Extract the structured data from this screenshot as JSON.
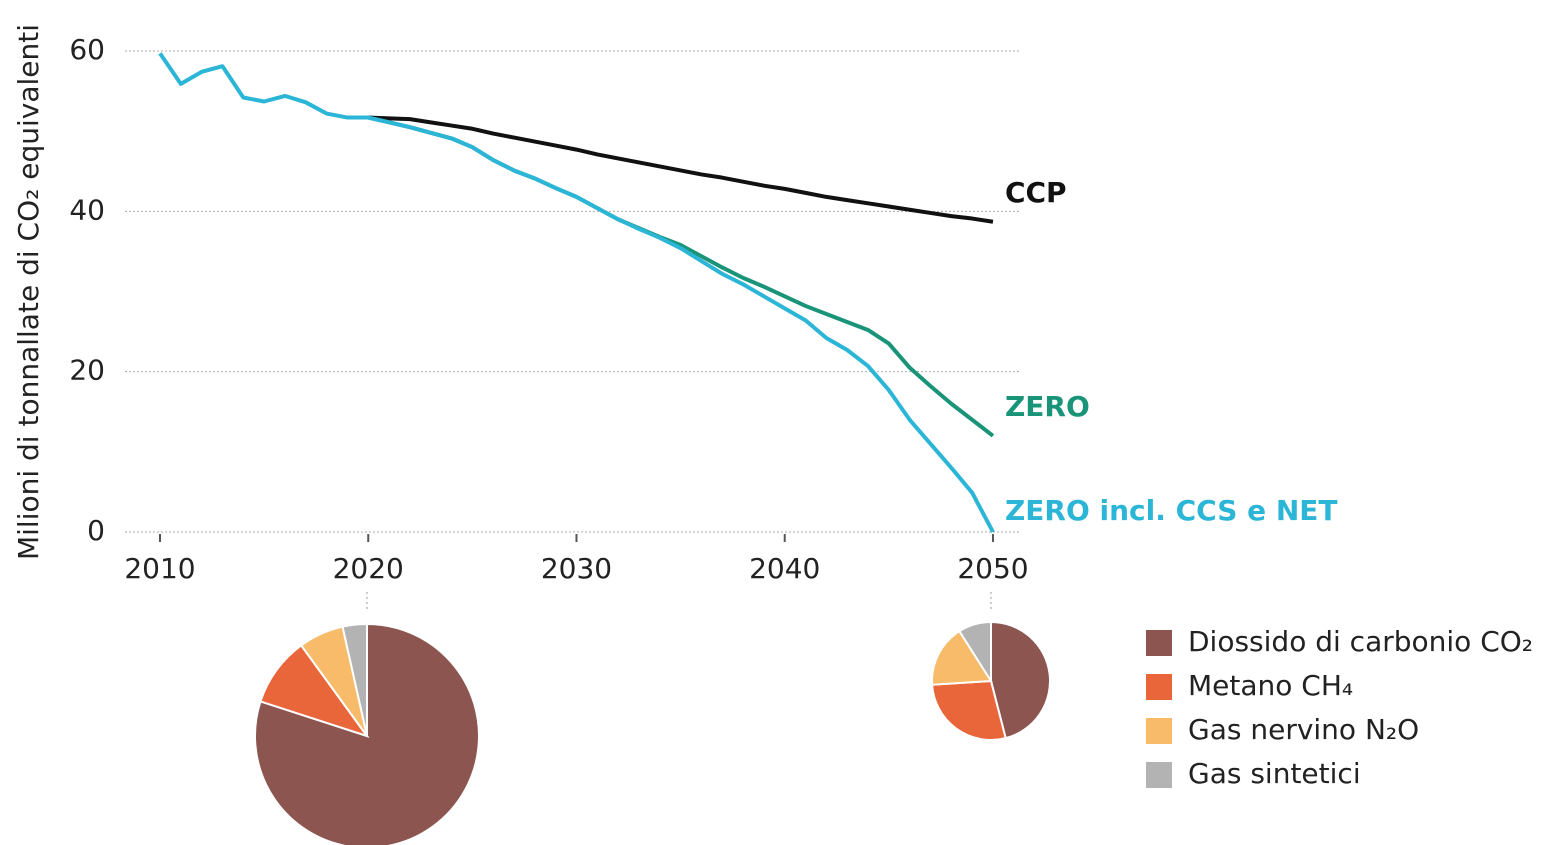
{
  "chart_data": [
    {
      "type": "line",
      "y_label": "Milioni di tonnallate di CO₂ equivalenti",
      "x": [
        2010,
        2011,
        2012,
        2013,
        2014,
        2015,
        2016,
        2017,
        2018,
        2019,
        2020,
        2021,
        2022,
        2023,
        2024,
        2025,
        2026,
        2027,
        2028,
        2029,
        2030,
        2031,
        2032,
        2033,
        2034,
        2035,
        2036,
        2037,
        2038,
        2039,
        2040,
        2041,
        2042,
        2043,
        2044,
        2045,
        2046,
        2047,
        2048,
        2049,
        2050
      ],
      "series": [
        {
          "name": "CCP",
          "color": "#111111",
          "values": [
            null,
            null,
            null,
            null,
            null,
            null,
            null,
            null,
            null,
            null,
            51.7,
            51.6,
            51.5,
            51.1,
            50.7,
            50.3,
            49.7,
            49.2,
            48.7,
            48.2,
            47.7,
            47.1,
            46.6,
            46.1,
            45.6,
            45.1,
            44.6,
            44.2,
            43.7,
            43.2,
            42.8,
            42.3,
            41.8,
            41.4,
            41.0,
            40.6,
            40.2,
            39.8,
            39.4,
            39.1,
            38.7
          ]
        },
        {
          "name": "ZERO",
          "color": "#1a9478",
          "values": [
            null,
            null,
            null,
            null,
            null,
            null,
            null,
            null,
            null,
            null,
            51.7,
            51.1,
            50.5,
            49.8,
            49.1,
            48.0,
            46.4,
            45.1,
            44.1,
            42.9,
            41.8,
            40.4,
            39.0,
            37.9,
            36.8,
            35.8,
            34.4,
            33.0,
            31.7,
            30.6,
            29.4,
            28.2,
            27.2,
            26.2,
            25.2,
            23.5,
            20.5,
            18.2,
            16.0,
            14.0,
            12.0
          ]
        },
        {
          "name": "ZERO incl. CCS e NET",
          "color": "#2bb5d6",
          "values": [
            59.7,
            55.9,
            57.4,
            58.1,
            54.2,
            53.7,
            54.4,
            53.6,
            52.2,
            51.7,
            51.7,
            51.1,
            50.5,
            49.8,
            49.1,
            48.0,
            46.4,
            45.1,
            44.1,
            42.9,
            41.8,
            40.4,
            39.0,
            37.8,
            36.7,
            35.4,
            33.8,
            32.2,
            30.9,
            29.4,
            27.9,
            26.4,
            24.2,
            22.7,
            20.7,
            17.7,
            14.0,
            11.0,
            8.0,
            4.9,
            0
          ]
        }
      ],
      "xlim": [
        2008,
        2051.5
      ],
      "xticks": [
        2010,
        2020,
        2030,
        2040,
        2050
      ],
      "ylim": [
        0,
        60
      ],
      "yticks": [
        0,
        20,
        40,
        60
      ],
      "grid": true
    },
    {
      "type": "pie",
      "categories": [
        "Diossido di carbonio CO₂",
        "Metano CH₄",
        "Gas nervino N₂O",
        "Gas sintetici"
      ],
      "colors": [
        "#8c5550",
        "#e8663a",
        "#f7bb6a",
        "#b3b3b3"
      ],
      "values": [
        80,
        10,
        6.5,
        3.5
      ]
    },
    {
      "type": "pie",
      "values": [
        46,
        28,
        17,
        9
      ]
    }
  ]
}
